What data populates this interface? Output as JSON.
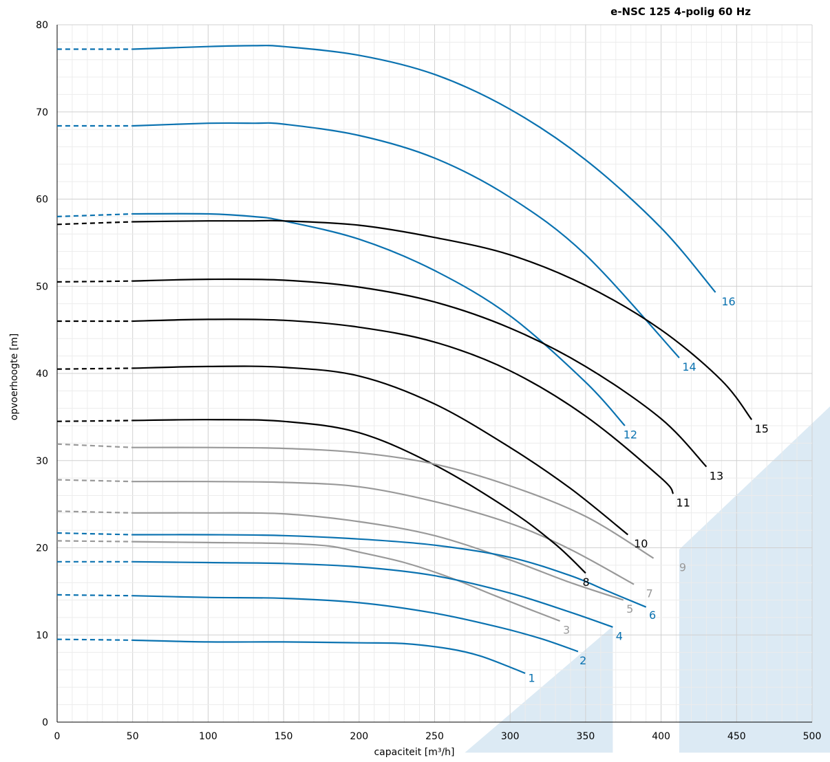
{
  "chart_data": {
    "type": "line",
    "title": "e-NSC 125 4-polig 60 Hz",
    "xlabel": "capaciteit [m³/h]",
    "ylabel": "opvoerhoogte [m]",
    "xlim": [
      0,
      500
    ],
    "ylim": [
      0,
      80
    ],
    "x_ticks": [
      0,
      50,
      100,
      150,
      200,
      250,
      300,
      350,
      400,
      450,
      500
    ],
    "y_ticks": [
      0,
      10,
      20,
      30,
      40,
      50,
      60,
      70,
      80
    ],
    "grid": true,
    "dashed_segment_x": [
      0,
      50
    ],
    "colors": {
      "blue": "#0a72b0",
      "black": "#000000",
      "grey": "#999999",
      "region": "#dceaf4",
      "grid_major": "#d0d0d0",
      "grid_minor": "#ececec"
    },
    "series": [
      {
        "name": "1",
        "color": "blue",
        "x": [
          0,
          50,
          100,
          150,
          200,
          230,
          260,
          280,
          300,
          310
        ],
        "y": [
          9.5,
          9.4,
          9.2,
          9.2,
          9.1,
          9.0,
          8.4,
          7.6,
          6.3,
          5.6
        ]
      },
      {
        "name": "2",
        "color": "blue",
        "x": [
          0,
          50,
          100,
          150,
          200,
          250,
          290,
          320,
          345
        ],
        "y": [
          14.6,
          14.5,
          14.3,
          14.2,
          13.7,
          12.5,
          11.0,
          9.6,
          8.1
        ]
      },
      {
        "name": "3",
        "color": "grey",
        "x": [
          0,
          50,
          100,
          150,
          180,
          200,
          230,
          260,
          290,
          315,
          333
        ],
        "y": [
          20.8,
          20.7,
          20.6,
          20.5,
          20.2,
          19.5,
          18.3,
          16.6,
          14.5,
          12.8,
          11.6
        ]
      },
      {
        "name": "4",
        "color": "blue",
        "x": [
          0,
          50,
          100,
          150,
          200,
          250,
          300,
          340,
          368
        ],
        "y": [
          18.4,
          18.4,
          18.3,
          18.2,
          17.8,
          16.8,
          14.8,
          12.6,
          10.9
        ]
      },
      {
        "name": "5",
        "color": "grey",
        "x": [
          0,
          50,
          100,
          150,
          200,
          250,
          300,
          340,
          375
        ],
        "y": [
          24.2,
          24.0,
          24.0,
          23.9,
          23.0,
          21.4,
          18.6,
          16.0,
          14.0
        ]
      },
      {
        "name": "6",
        "color": "blue",
        "x": [
          0,
          50,
          100,
          150,
          200,
          250,
          300,
          340,
          365,
          390
        ],
        "y": [
          21.7,
          21.5,
          21.5,
          21.4,
          21.0,
          20.3,
          18.9,
          16.8,
          15.0,
          13.2
        ]
      },
      {
        "name": "7",
        "color": "grey",
        "x": [
          0,
          50,
          100,
          150,
          200,
          250,
          300,
          340,
          382
        ],
        "y": [
          27.8,
          27.6,
          27.6,
          27.5,
          27.0,
          25.3,
          22.8,
          19.8,
          15.8
        ]
      },
      {
        "name": "8",
        "color": "black",
        "x": [
          0,
          50,
          100,
          150,
          200,
          250,
          300,
          330,
          350
        ],
        "y": [
          34.5,
          34.6,
          34.7,
          34.5,
          33.2,
          29.5,
          24.3,
          20.4,
          17.1
        ]
      },
      {
        "name": "9",
        "color": "grey",
        "x": [
          0,
          50,
          100,
          150,
          200,
          250,
          300,
          350,
          395
        ],
        "y": [
          31.9,
          31.5,
          31.5,
          31.4,
          30.9,
          29.6,
          27.1,
          23.6,
          18.8
        ]
      },
      {
        "name": "10",
        "color": "black",
        "x": [
          0,
          50,
          100,
          150,
          200,
          250,
          300,
          340,
          378
        ],
        "y": [
          40.5,
          40.6,
          40.8,
          40.7,
          39.7,
          36.5,
          31.5,
          26.8,
          21.5
        ]
      },
      {
        "name": "11",
        "color": "black",
        "x": [
          0,
          50,
          100,
          150,
          200,
          250,
          300,
          350,
          400,
          408
        ],
        "y": [
          46.0,
          46.0,
          46.2,
          46.1,
          45.3,
          43.6,
          40.3,
          35.1,
          28.0,
          26.2
        ]
      },
      {
        "name": "12",
        "color": "blue",
        "x": [
          0,
          50,
          100,
          130,
          150,
          200,
          250,
          300,
          350,
          376
        ],
        "y": [
          58.0,
          58.3,
          58.3,
          58.0,
          57.5,
          55.4,
          51.8,
          46.6,
          39.0,
          34.0
        ]
      },
      {
        "name": "13",
        "color": "black",
        "x": [
          0,
          50,
          100,
          150,
          200,
          250,
          300,
          350,
          400,
          430
        ],
        "y": [
          50.5,
          50.6,
          50.8,
          50.7,
          49.9,
          48.2,
          45.2,
          40.8,
          34.8,
          29.3
        ]
      },
      {
        "name": "14",
        "color": "blue",
        "x": [
          0,
          50,
          100,
          130,
          150,
          200,
          250,
          300,
          350,
          412
        ],
        "y": [
          68.4,
          68.4,
          68.7,
          68.7,
          68.6,
          67.3,
          64.7,
          60.2,
          53.6,
          41.8
        ]
      },
      {
        "name": "15",
        "color": "black",
        "x": [
          0,
          50,
          100,
          130,
          150,
          200,
          250,
          300,
          350,
          400,
          440,
          460
        ],
        "y": [
          57.1,
          57.4,
          57.5,
          57.5,
          57.5,
          57.0,
          55.6,
          53.6,
          50.1,
          45.0,
          39.2,
          34.7
        ]
      },
      {
        "name": "16",
        "color": "blue",
        "x": [
          0,
          50,
          100,
          130,
          150,
          200,
          250,
          300,
          350,
          400,
          436
        ],
        "y": [
          77.2,
          77.2,
          77.5,
          77.6,
          77.5,
          76.5,
          74.3,
          70.3,
          64.5,
          56.7,
          49.3
        ]
      }
    ],
    "regions": [
      {
        "polygon": [
          [
            270,
            -3.5
          ],
          [
            368,
            11.0
          ],
          [
            368,
            -3.5
          ]
        ]
      },
      {
        "polygon": [
          [
            412,
            -3.5
          ],
          [
            412,
            19.8
          ],
          [
            513,
            36.4
          ],
          [
            513,
            -3.5
          ]
        ]
      }
    ],
    "curve_labels": [
      {
        "text": "1",
        "x": 312,
        "y": 5.1,
        "color": "blue"
      },
      {
        "text": "2",
        "x": 346,
        "y": 7.1,
        "color": "blue"
      },
      {
        "text": "3",
        "x": 335,
        "y": 10.6,
        "color": "grey"
      },
      {
        "text": "4",
        "x": 370,
        "y": 9.9,
        "color": "blue"
      },
      {
        "text": "5",
        "x": 377,
        "y": 13.0,
        "color": "grey"
      },
      {
        "text": "6",
        "x": 392,
        "y": 12.3,
        "color": "blue"
      },
      {
        "text": "7",
        "x": 390,
        "y": 14.8,
        "color": "grey"
      },
      {
        "text": "8",
        "x": 348,
        "y": 16.1,
        "color": "black"
      },
      {
        "text": "9",
        "x": 412,
        "y": 17.8,
        "color": "grey"
      },
      {
        "text": "10",
        "x": 382,
        "y": 20.5,
        "color": "black"
      },
      {
        "text": "11",
        "x": 410,
        "y": 25.2,
        "color": "black"
      },
      {
        "text": "12",
        "x": 375,
        "y": 33.0,
        "color": "blue"
      },
      {
        "text": "13",
        "x": 432,
        "y": 28.3,
        "color": "black"
      },
      {
        "text": "14",
        "x": 414,
        "y": 40.8,
        "color": "blue"
      },
      {
        "text": "15",
        "x": 462,
        "y": 33.7,
        "color": "black"
      },
      {
        "text": "16",
        "x": 440,
        "y": 48.3,
        "color": "blue"
      }
    ]
  }
}
